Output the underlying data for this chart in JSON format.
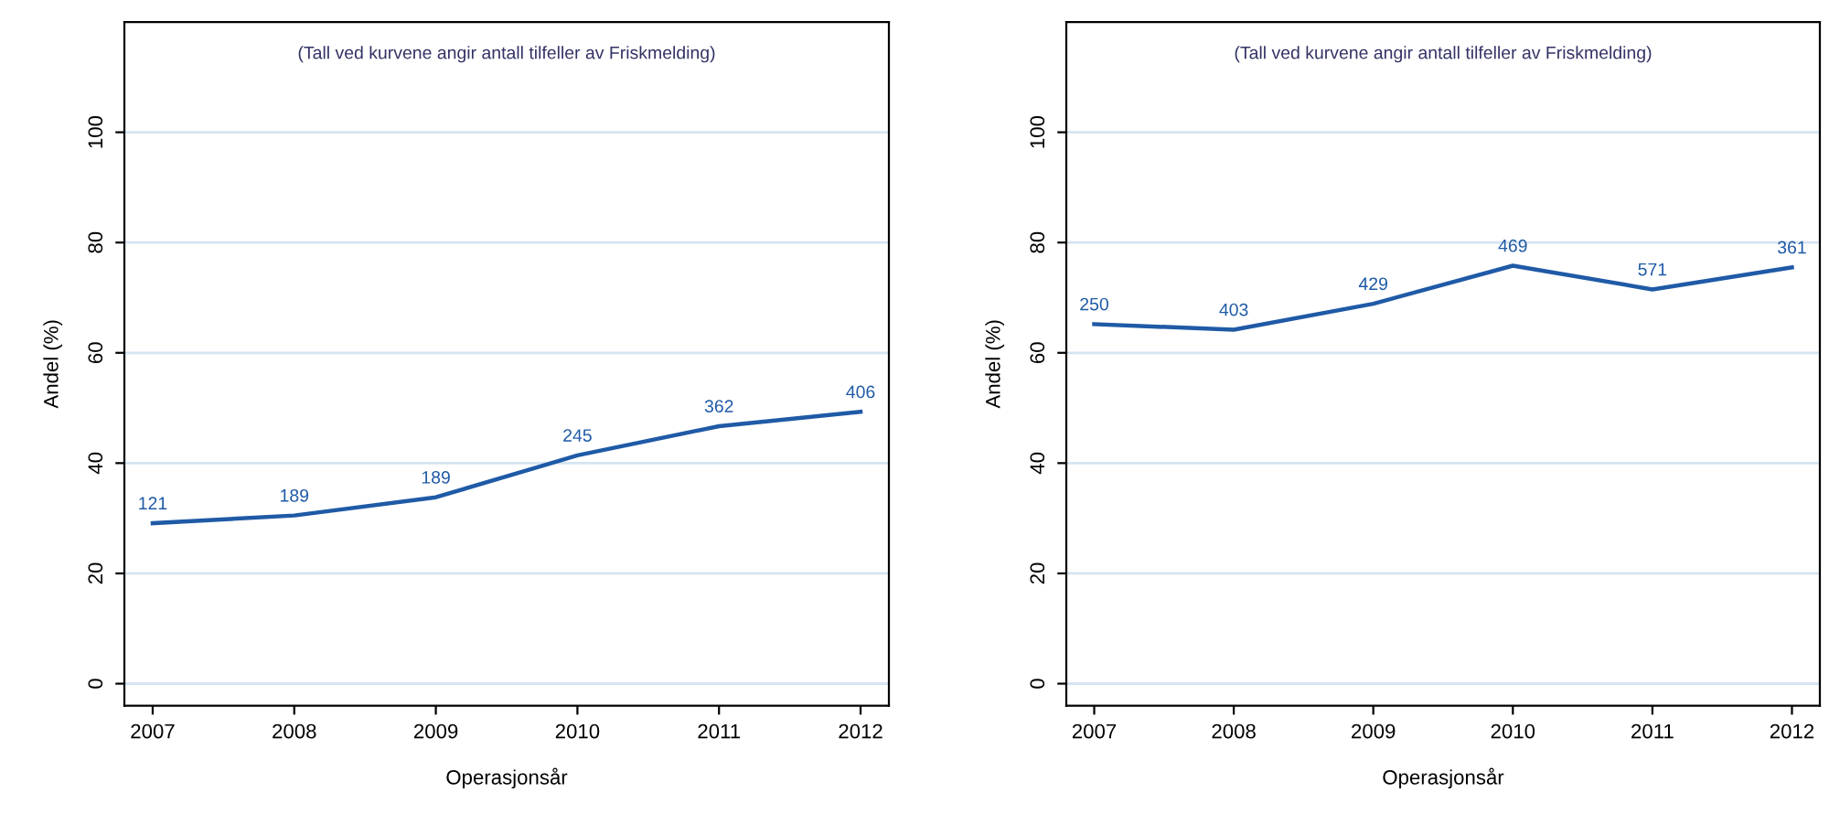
{
  "chart_data": [
    {
      "type": "line",
      "xlabel": "Operasjonsår",
      "ylabel": "Andel (%)",
      "categories": [
        "2007",
        "2008",
        "2009",
        "2010",
        "2011",
        "2012"
      ],
      "series": [
        {
          "color": "#1f5aa6",
          "values": [
            29.1,
            30.5,
            33.8,
            41.4,
            46.7,
            49.3
          ]
        }
      ],
      "ylim": [
        -4,
        120
      ],
      "yticks": [
        0,
        20,
        40,
        60,
        80,
        100
      ],
      "grid": "y",
      "annotations": [
        "(Tall ved kurvene angir antall tilfeller av Friskmelding)",
        {
          "text": "121",
          "x": "2007",
          "y": 29.1
        },
        {
          "text": "189",
          "x": "2008",
          "y": 30.5
        },
        {
          "text": "189",
          "x": "2009",
          "y": 33.8
        },
        {
          "text": "245",
          "x": "2010",
          "y": 41.4
        },
        {
          "text": "362",
          "x": "2011",
          "y": 46.7
        },
        {
          "text": "406",
          "x": "2012",
          "y": 49.3
        }
      ]
    },
    {
      "type": "line",
      "xlabel": "Operasjonsår",
      "ylabel": "Andel (%)",
      "categories": [
        "2007",
        "2008",
        "2009",
        "2010",
        "2011",
        "2012"
      ],
      "series": [
        {
          "color": "#1f5aa6",
          "values": [
            65.2,
            64.2,
            68.9,
            75.8,
            71.5,
            75.5
          ]
        }
      ],
      "ylim": [
        -4,
        120
      ],
      "yticks": [
        0,
        20,
        40,
        60,
        80,
        100
      ],
      "grid": "y",
      "annotations": [
        "(Tall ved kurvene angir antall tilfeller av Friskmelding)",
        {
          "text": "250",
          "x": "2007",
          "y": 65.2
        },
        {
          "text": "403",
          "x": "2008",
          "y": 64.2
        },
        {
          "text": "429",
          "x": "2009",
          "y": 68.9
        },
        {
          "text": "469",
          "x": "2010",
          "y": 75.8
        },
        {
          "text": "571",
          "x": "2011",
          "y": 71.5
        },
        {
          "text": "361",
          "x": "2012",
          "y": 75.5
        }
      ]
    }
  ]
}
